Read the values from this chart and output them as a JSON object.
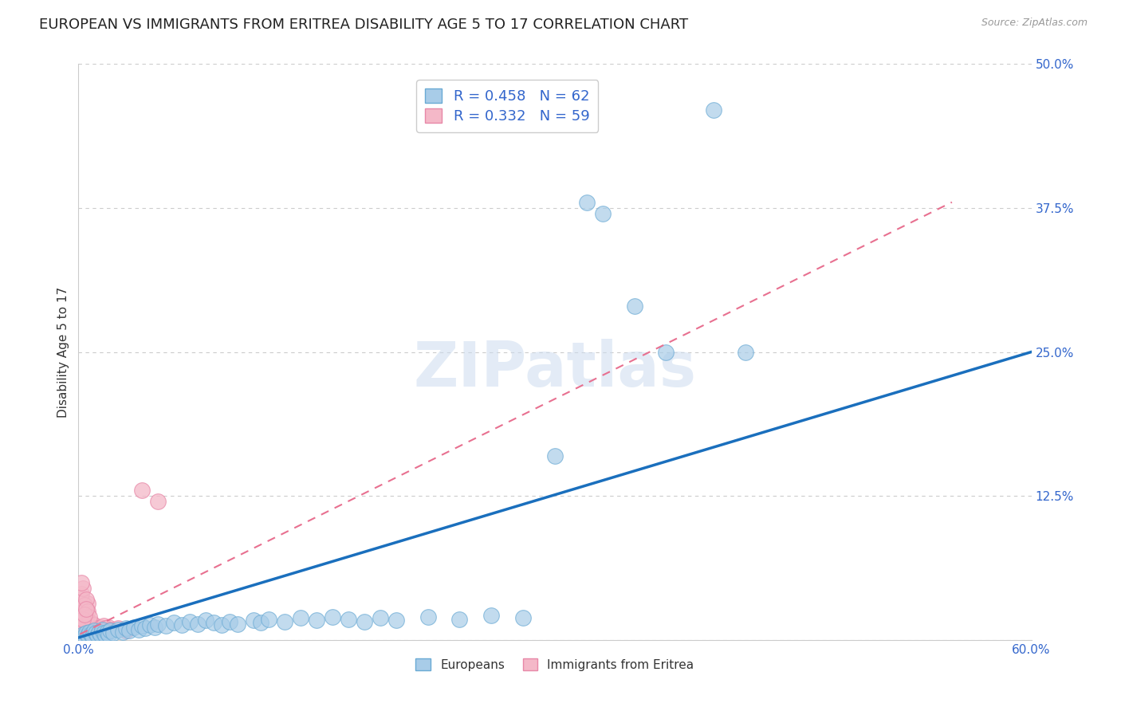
{
  "title": "EUROPEAN VS IMMIGRANTS FROM ERITREA DISABILITY AGE 5 TO 17 CORRELATION CHART",
  "source": "Source: ZipAtlas.com",
  "ylabel": "Disability Age 5 to 17",
  "xlim": [
    0.0,
    0.6
  ],
  "ylim": [
    0.0,
    0.5
  ],
  "xticks": [
    0.0,
    0.1,
    0.2,
    0.3,
    0.4,
    0.5,
    0.6
  ],
  "yticks": [
    0.0,
    0.125,
    0.25,
    0.375,
    0.5
  ],
  "ytick_labels": [
    "",
    "12.5%",
    "25.0%",
    "37.5%",
    "50.0%"
  ],
  "xtick_labels": [
    "0.0%",
    "",
    "",
    "",
    "",
    "",
    "60.0%"
  ],
  "background_color": "#ffffff",
  "grid_color": "#cccccc",
  "watermark": "ZIPatlas",
  "blue_color": "#a8cce8",
  "pink_color": "#f4b8c8",
  "blue_edge": "#6aaad4",
  "pink_edge": "#e888a8",
  "line_blue": "#1a6fbd",
  "line_pink": "#e87090",
  "title_fontsize": 13,
  "axis_label_fontsize": 11,
  "tick_fontsize": 11,
  "legend_fontsize": 13,
  "europeans_scatter": [
    [
      0.002,
      0.002
    ],
    [
      0.003,
      0.005
    ],
    [
      0.004,
      0.003
    ],
    [
      0.005,
      0.006
    ],
    [
      0.006,
      0.004
    ],
    [
      0.007,
      0.007
    ],
    [
      0.008,
      0.005
    ],
    [
      0.009,
      0.003
    ],
    [
      0.01,
      0.008
    ],
    [
      0.011,
      0.006
    ],
    [
      0.012,
      0.004
    ],
    [
      0.013,
      0.007
    ],
    [
      0.014,
      0.005
    ],
    [
      0.015,
      0.009
    ],
    [
      0.016,
      0.006
    ],
    [
      0.017,
      0.004
    ],
    [
      0.018,
      0.007
    ],
    [
      0.019,
      0.005
    ],
    [
      0.02,
      0.008
    ],
    [
      0.022,
      0.006
    ],
    [
      0.025,
      0.009
    ],
    [
      0.028,
      0.007
    ],
    [
      0.03,
      0.01
    ],
    [
      0.032,
      0.008
    ],
    [
      0.035,
      0.011
    ],
    [
      0.038,
      0.009
    ],
    [
      0.04,
      0.012
    ],
    [
      0.042,
      0.01
    ],
    [
      0.045,
      0.013
    ],
    [
      0.048,
      0.011
    ],
    [
      0.05,
      0.014
    ],
    [
      0.055,
      0.012
    ],
    [
      0.06,
      0.015
    ],
    [
      0.065,
      0.013
    ],
    [
      0.07,
      0.016
    ],
    [
      0.075,
      0.014
    ],
    [
      0.08,
      0.017
    ],
    [
      0.085,
      0.015
    ],
    [
      0.09,
      0.013
    ],
    [
      0.095,
      0.016
    ],
    [
      0.1,
      0.014
    ],
    [
      0.11,
      0.017
    ],
    [
      0.115,
      0.015
    ],
    [
      0.12,
      0.018
    ],
    [
      0.13,
      0.016
    ],
    [
      0.14,
      0.019
    ],
    [
      0.15,
      0.017
    ],
    [
      0.16,
      0.02
    ],
    [
      0.17,
      0.018
    ],
    [
      0.18,
      0.016
    ],
    [
      0.19,
      0.019
    ],
    [
      0.2,
      0.017
    ],
    [
      0.22,
      0.02
    ],
    [
      0.24,
      0.018
    ],
    [
      0.26,
      0.021
    ],
    [
      0.28,
      0.019
    ],
    [
      0.3,
      0.16
    ],
    [
      0.32,
      0.38
    ],
    [
      0.33,
      0.37
    ],
    [
      0.35,
      0.29
    ],
    [
      0.37,
      0.25
    ],
    [
      0.4,
      0.46
    ],
    [
      0.42,
      0.25
    ]
  ],
  "eritrea_scatter": [
    [
      0.001,
      0.002
    ],
    [
      0.002,
      0.005
    ],
    [
      0.002,
      0.008
    ],
    [
      0.002,
      0.012
    ],
    [
      0.002,
      0.02
    ],
    [
      0.002,
      0.028
    ],
    [
      0.002,
      0.035
    ],
    [
      0.003,
      0.003
    ],
    [
      0.003,
      0.007
    ],
    [
      0.003,
      0.01
    ],
    [
      0.003,
      0.015
    ],
    [
      0.003,
      0.022
    ],
    [
      0.004,
      0.004
    ],
    [
      0.004,
      0.008
    ],
    [
      0.004,
      0.013
    ],
    [
      0.004,
      0.018
    ],
    [
      0.005,
      0.005
    ],
    [
      0.005,
      0.009
    ],
    [
      0.005,
      0.014
    ],
    [
      0.005,
      0.02
    ],
    [
      0.006,
      0.006
    ],
    [
      0.006,
      0.01
    ],
    [
      0.006,
      0.016
    ],
    [
      0.006,
      0.032
    ],
    [
      0.007,
      0.005
    ],
    [
      0.007,
      0.009
    ],
    [
      0.007,
      0.013
    ],
    [
      0.008,
      0.006
    ],
    [
      0.008,
      0.01
    ],
    [
      0.008,
      0.015
    ],
    [
      0.009,
      0.007
    ],
    [
      0.009,
      0.011
    ],
    [
      0.01,
      0.008
    ],
    [
      0.01,
      0.013
    ],
    [
      0.011,
      0.009
    ],
    [
      0.012,
      0.01
    ],
    [
      0.013,
      0.008
    ],
    [
      0.014,
      0.011
    ],
    [
      0.015,
      0.009
    ],
    [
      0.016,
      0.012
    ],
    [
      0.017,
      0.01
    ],
    [
      0.018,
      0.008
    ],
    [
      0.019,
      0.011
    ],
    [
      0.02,
      0.009
    ],
    [
      0.025,
      0.01
    ],
    [
      0.03,
      0.008
    ],
    [
      0.002,
      0.04
    ],
    [
      0.003,
      0.045
    ],
    [
      0.002,
      0.05
    ],
    [
      0.04,
      0.13
    ],
    [
      0.05,
      0.12
    ],
    [
      0.003,
      0.025
    ],
    [
      0.004,
      0.03
    ],
    [
      0.005,
      0.035
    ],
    [
      0.002,
      0.015
    ],
    [
      0.006,
      0.025
    ],
    [
      0.007,
      0.02
    ],
    [
      0.003,
      0.018
    ],
    [
      0.004,
      0.022
    ],
    [
      0.005,
      0.027
    ]
  ],
  "eu_trend": [
    0.0,
    0.6,
    0.002,
    0.25
  ],
  "er_trend_x": [
    0.001,
    0.55
  ],
  "er_trend_y": [
    0.005,
    0.38
  ]
}
